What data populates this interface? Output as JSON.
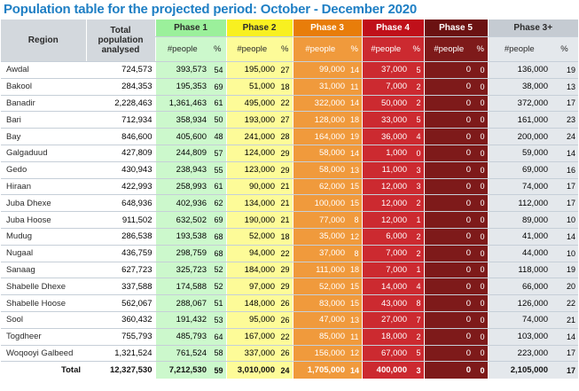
{
  "title": "Population table for the projected period: October - December 2020",
  "headers": {
    "region": "Region",
    "total_pop": "Total population analysed",
    "phase1": "Phase 1",
    "phase2": "Phase 2",
    "phase3": "Phase 3",
    "phase4": "Phase 4",
    "phase5": "Phase 5",
    "phase3plus": "Phase 3+",
    "people": "#people",
    "pct": "%"
  },
  "colors": {
    "title": "#1f7fc4",
    "phase1": "#9bf09b",
    "phase2": "#f8f020",
    "phase3": "#e87d0a",
    "phase4": "#c0101a",
    "phase5": "#6b1212"
  },
  "rows": [
    {
      "region": "Awdal",
      "total": "724,573",
      "p1": "393,573",
      "p1p": "54",
      "p2": "195,000",
      "p2p": "27",
      "p3": "99,000",
      "p3p": "14",
      "p4": "37,000",
      "p4p": "5",
      "p5": "0",
      "p5p": "0",
      "p3plus": "136,000",
      "p3plusp": "19"
    },
    {
      "region": "Bakool",
      "total": "284,353",
      "p1": "195,353",
      "p1p": "69",
      "p2": "51,000",
      "p2p": "18",
      "p3": "31,000",
      "p3p": "11",
      "p4": "7,000",
      "p4p": "2",
      "p5": "0",
      "p5p": "0",
      "p3plus": "38,000",
      "p3plusp": "13"
    },
    {
      "region": "Banadir",
      "total": "2,228,463",
      "p1": "1,361,463",
      "p1p": "61",
      "p2": "495,000",
      "p2p": "22",
      "p3": "322,000",
      "p3p": "14",
      "p4": "50,000",
      "p4p": "2",
      "p5": "0",
      "p5p": "0",
      "p3plus": "372,000",
      "p3plusp": "17"
    },
    {
      "region": "Bari",
      "total": "712,934",
      "p1": "358,934",
      "p1p": "50",
      "p2": "193,000",
      "p2p": "27",
      "p3": "128,000",
      "p3p": "18",
      "p4": "33,000",
      "p4p": "5",
      "p5": "0",
      "p5p": "0",
      "p3plus": "161,000",
      "p3plusp": "23"
    },
    {
      "region": "Bay",
      "total": "846,600",
      "p1": "405,600",
      "p1p": "48",
      "p2": "241,000",
      "p2p": "28",
      "p3": "164,000",
      "p3p": "19",
      "p4": "36,000",
      "p4p": "4",
      "p5": "0",
      "p5p": "0",
      "p3plus": "200,000",
      "p3plusp": "24"
    },
    {
      "region": "Galgaduud",
      "total": "427,809",
      "p1": "244,809",
      "p1p": "57",
      "p2": "124,000",
      "p2p": "29",
      "p3": "58,000",
      "p3p": "14",
      "p4": "1,000",
      "p4p": "0",
      "p5": "0",
      "p5p": "0",
      "p3plus": "59,000",
      "p3plusp": "14"
    },
    {
      "region": "Gedo",
      "total": "430,943",
      "p1": "238,943",
      "p1p": "55",
      "p2": "123,000",
      "p2p": "29",
      "p3": "58,000",
      "p3p": "13",
      "p4": "11,000",
      "p4p": "3",
      "p5": "0",
      "p5p": "0",
      "p3plus": "69,000",
      "p3plusp": "16"
    },
    {
      "region": "Hiraan",
      "total": "422,993",
      "p1": "258,993",
      "p1p": "61",
      "p2": "90,000",
      "p2p": "21",
      "p3": "62,000",
      "p3p": "15",
      "p4": "12,000",
      "p4p": "3",
      "p5": "0",
      "p5p": "0",
      "p3plus": "74,000",
      "p3plusp": "17"
    },
    {
      "region": "Juba Dhexe",
      "total": "648,936",
      "p1": "402,936",
      "p1p": "62",
      "p2": "134,000",
      "p2p": "21",
      "p3": "100,000",
      "p3p": "15",
      "p4": "12,000",
      "p4p": "2",
      "p5": "0",
      "p5p": "0",
      "p3plus": "112,000",
      "p3plusp": "17"
    },
    {
      "region": "Juba Hoose",
      "total": "911,502",
      "p1": "632,502",
      "p1p": "69",
      "p2": "190,000",
      "p2p": "21",
      "p3": "77,000",
      "p3p": "8",
      "p4": "12,000",
      "p4p": "1",
      "p5": "0",
      "p5p": "0",
      "p3plus": "89,000",
      "p3plusp": "10"
    },
    {
      "region": "Mudug",
      "total": "286,538",
      "p1": "193,538",
      "p1p": "68",
      "p2": "52,000",
      "p2p": "18",
      "p3": "35,000",
      "p3p": "12",
      "p4": "6,000",
      "p4p": "2",
      "p5": "0",
      "p5p": "0",
      "p3plus": "41,000",
      "p3plusp": "14"
    },
    {
      "region": "Nugaal",
      "total": "436,759",
      "p1": "298,759",
      "p1p": "68",
      "p2": "94,000",
      "p2p": "22",
      "p3": "37,000",
      "p3p": "8",
      "p4": "7,000",
      "p4p": "2",
      "p5": "0",
      "p5p": "0",
      "p3plus": "44,000",
      "p3plusp": "10"
    },
    {
      "region": "Sanaag",
      "total": "627,723",
      "p1": "325,723",
      "p1p": "52",
      "p2": "184,000",
      "p2p": "29",
      "p3": "111,000",
      "p3p": "18",
      "p4": "7,000",
      "p4p": "1",
      "p5": "0",
      "p5p": "0",
      "p3plus": "118,000",
      "p3plusp": "19"
    },
    {
      "region": "Shabelle Dhexe",
      "total": "337,588",
      "p1": "174,588",
      "p1p": "52",
      "p2": "97,000",
      "p2p": "29",
      "p3": "52,000",
      "p3p": "15",
      "p4": "14,000",
      "p4p": "4",
      "p5": "0",
      "p5p": "0",
      "p3plus": "66,000",
      "p3plusp": "20"
    },
    {
      "region": "Shabelle Hoose",
      "total": "562,067",
      "p1": "288,067",
      "p1p": "51",
      "p2": "148,000",
      "p2p": "26",
      "p3": "83,000",
      "p3p": "15",
      "p4": "43,000",
      "p4p": "8",
      "p5": "0",
      "p5p": "0",
      "p3plus": "126,000",
      "p3plusp": "22"
    },
    {
      "region": "Sool",
      "total": "360,432",
      "p1": "191,432",
      "p1p": "53",
      "p2": "95,000",
      "p2p": "26",
      "p3": "47,000",
      "p3p": "13",
      "p4": "27,000",
      "p4p": "7",
      "p5": "0",
      "p5p": "0",
      "p3plus": "74,000",
      "p3plusp": "21"
    },
    {
      "region": "Togdheer",
      "total": "755,793",
      "p1": "485,793",
      "p1p": "64",
      "p2": "167,000",
      "p2p": "22",
      "p3": "85,000",
      "p3p": "11",
      "p4": "18,000",
      "p4p": "2",
      "p5": "0",
      "p5p": "0",
      "p3plus": "103,000",
      "p3plusp": "14"
    },
    {
      "region": "Woqooyi Galbeed",
      "total": "1,321,524",
      "p1": "761,524",
      "p1p": "58",
      "p2": "337,000",
      "p2p": "26",
      "p3": "156,000",
      "p3p": "12",
      "p4": "67,000",
      "p4p": "5",
      "p5": "0",
      "p5p": "0",
      "p3plus": "223,000",
      "p3plusp": "17"
    }
  ],
  "total_row": {
    "label": "Total",
    "total": "12,327,530",
    "p1": "7,212,530",
    "p1p": "59",
    "p2": "3,010,000",
    "p2p": "24",
    "p3": "1,705,000",
    "p3p": "14",
    "p4": "400,000",
    "p4p": "3",
    "p5": "0",
    "p5p": "0",
    "p3plus": "2,105,000",
    "p3plusp": "17"
  }
}
